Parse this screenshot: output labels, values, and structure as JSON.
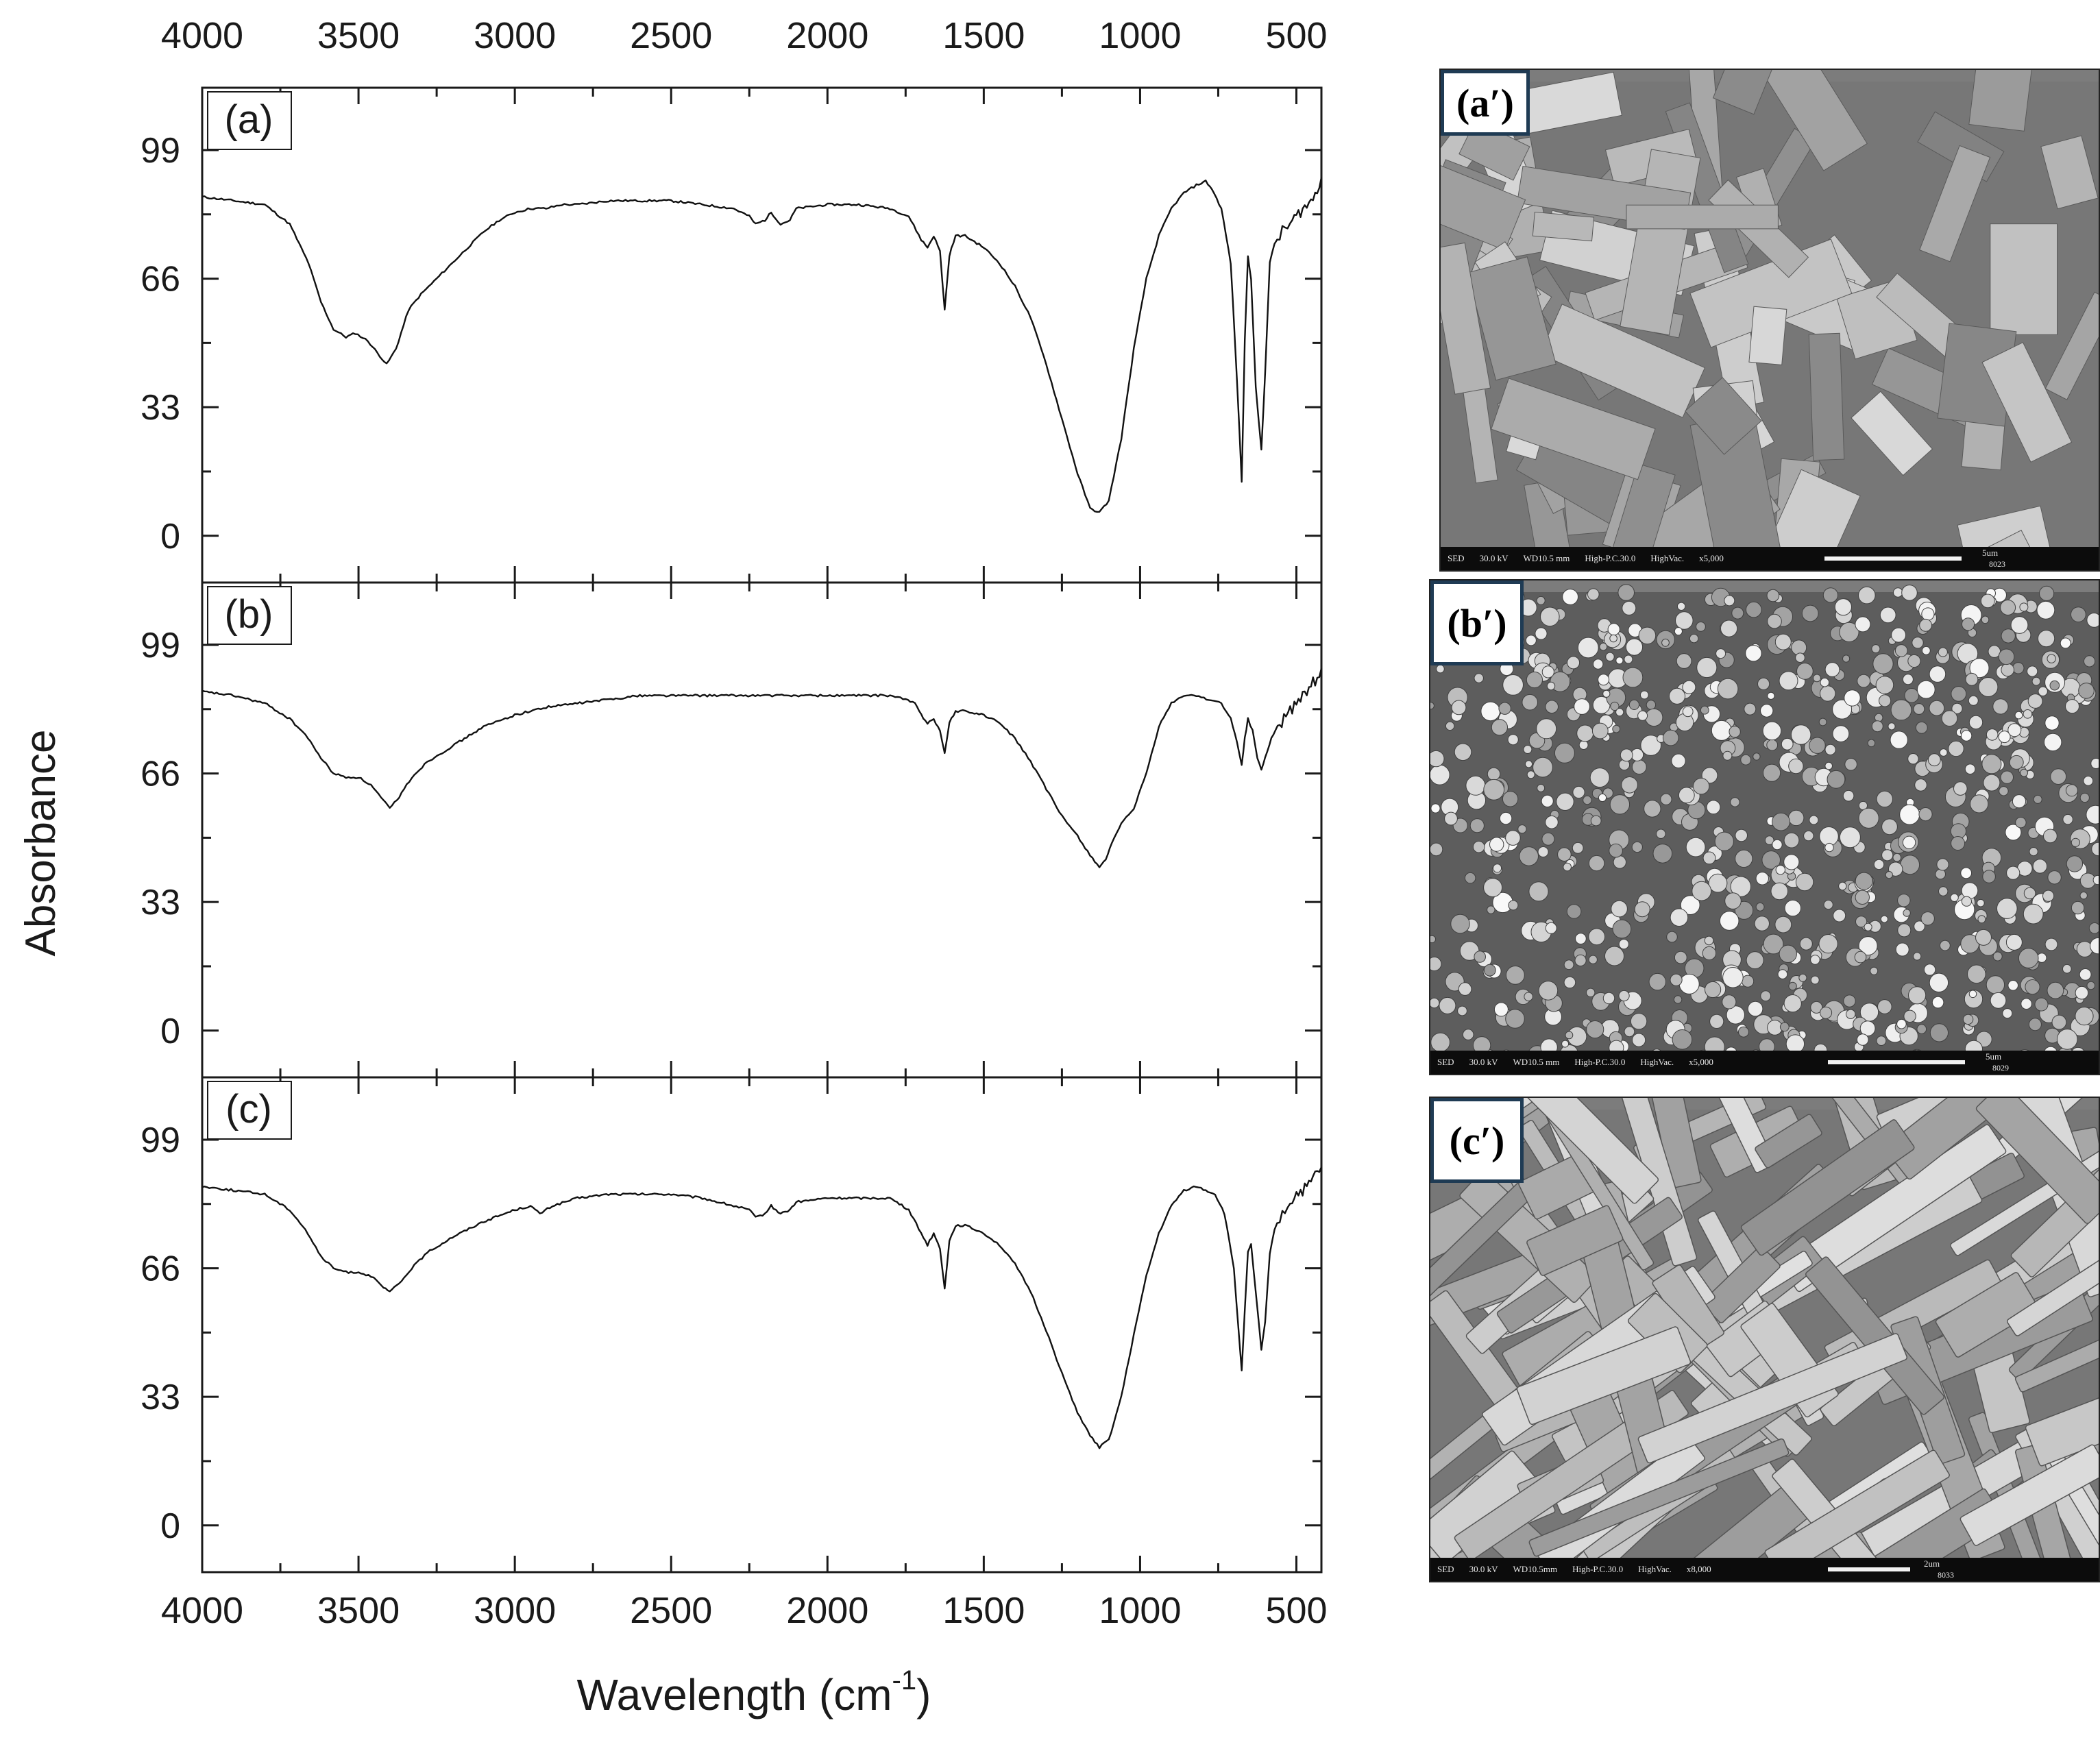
{
  "chart_data": {
    "type": "line",
    "xlabel": "Wavelength (cm",
    "xlabel_sup": "-1",
    "xlabel_close": ")",
    "ylabel": "Absorbance",
    "xlim": [
      4000,
      420
    ],
    "x_ticks": [
      4000,
      3500,
      3000,
      2500,
      2000,
      1500,
      1000,
      500
    ],
    "y_ticks": [
      0,
      33,
      66,
      99
    ],
    "ylim": [
      -12,
      115
    ],
    "grid": false,
    "panels": [
      {
        "label": "(a)",
        "points": [
          [
            4000,
            87
          ],
          [
            3900,
            86
          ],
          [
            3800,
            85
          ],
          [
            3720,
            80
          ],
          [
            3660,
            70
          ],
          [
            3620,
            60
          ],
          [
            3580,
            53
          ],
          [
            3540,
            51
          ],
          [
            3510,
            52
          ],
          [
            3470,
            50
          ],
          [
            3440,
            47
          ],
          [
            3410,
            44
          ],
          [
            3380,
            48
          ],
          [
            3340,
            58
          ],
          [
            3300,
            62
          ],
          [
            3250,
            66
          ],
          [
            3200,
            70
          ],
          [
            3150,
            74
          ],
          [
            3100,
            78
          ],
          [
            3050,
            81
          ],
          [
            3000,
            83
          ],
          [
            2950,
            84
          ],
          [
            2900,
            84
          ],
          [
            2850,
            85
          ],
          [
            2800,
            85
          ],
          [
            2700,
            86
          ],
          [
            2600,
            86
          ],
          [
            2500,
            86
          ],
          [
            2400,
            85
          ],
          [
            2300,
            84
          ],
          [
            2250,
            82
          ],
          [
            2230,
            80
          ],
          [
            2200,
            81
          ],
          [
            2180,
            83
          ],
          [
            2150,
            80
          ],
          [
            2120,
            81
          ],
          [
            2100,
            84
          ],
          [
            2000,
            85
          ],
          [
            1900,
            85
          ],
          [
            1800,
            84
          ],
          [
            1740,
            82
          ],
          [
            1700,
            76
          ],
          [
            1680,
            74
          ],
          [
            1660,
            77
          ],
          [
            1640,
            73
          ],
          [
            1625,
            58
          ],
          [
            1610,
            72
          ],
          [
            1590,
            77
          ],
          [
            1560,
            77
          ],
          [
            1500,
            74
          ],
          [
            1450,
            70
          ],
          [
            1400,
            64
          ],
          [
            1350,
            56
          ],
          [
            1300,
            44
          ],
          [
            1250,
            30
          ],
          [
            1200,
            16
          ],
          [
            1160,
            7
          ],
          [
            1130,
            6
          ],
          [
            1100,
            9
          ],
          [
            1060,
            25
          ],
          [
            1020,
            48
          ],
          [
            980,
            66
          ],
          [
            940,
            77
          ],
          [
            900,
            84
          ],
          [
            860,
            88
          ],
          [
            820,
            90
          ],
          [
            790,
            91
          ],
          [
            770,
            89
          ],
          [
            740,
            84
          ],
          [
            710,
            70
          ],
          [
            690,
            40
          ],
          [
            675,
            14
          ],
          [
            665,
            50
          ],
          [
            655,
            72
          ],
          [
            645,
            66
          ],
          [
            630,
            38
          ],
          [
            612,
            22
          ],
          [
            600,
            42
          ],
          [
            585,
            70
          ],
          [
            570,
            75
          ],
          [
            545,
            78
          ],
          [
            520,
            80
          ],
          [
            500,
            82
          ],
          [
            480,
            84
          ],
          [
            460,
            85
          ],
          [
            440,
            88
          ],
          [
            420,
            92
          ]
        ]
      },
      {
        "label": "(b)",
        "points": [
          [
            4000,
            87
          ],
          [
            3900,
            86
          ],
          [
            3800,
            84
          ],
          [
            3720,
            80
          ],
          [
            3670,
            76
          ],
          [
            3620,
            70
          ],
          [
            3580,
            66
          ],
          [
            3540,
            65
          ],
          [
            3500,
            65
          ],
          [
            3460,
            63
          ],
          [
            3420,
            59
          ],
          [
            3400,
            57
          ],
          [
            3370,
            60
          ],
          [
            3330,
            65
          ],
          [
            3280,
            69
          ],
          [
            3200,
            73
          ],
          [
            3100,
            78
          ],
          [
            3000,
            81
          ],
          [
            2950,
            82
          ],
          [
            2900,
            83
          ],
          [
            2800,
            84
          ],
          [
            2700,
            85
          ],
          [
            2600,
            86
          ],
          [
            2500,
            86
          ],
          [
            2400,
            86
          ],
          [
            2300,
            86
          ],
          [
            2200,
            86
          ],
          [
            2100,
            86
          ],
          [
            2000,
            86
          ],
          [
            1900,
            86
          ],
          [
            1800,
            86
          ],
          [
            1750,
            85
          ],
          [
            1720,
            84
          ],
          [
            1700,
            81
          ],
          [
            1680,
            79
          ],
          [
            1660,
            80
          ],
          [
            1640,
            77
          ],
          [
            1625,
            71
          ],
          [
            1610,
            79
          ],
          [
            1590,
            82
          ],
          [
            1560,
            82
          ],
          [
            1500,
            81
          ],
          [
            1450,
            79
          ],
          [
            1400,
            75
          ],
          [
            1350,
            69
          ],
          [
            1300,
            62
          ],
          [
            1250,
            55
          ],
          [
            1200,
            50
          ],
          [
            1160,
            45
          ],
          [
            1130,
            42
          ],
          [
            1110,
            44
          ],
          [
            1090,
            48
          ],
          [
            1060,
            53
          ],
          [
            1020,
            57
          ],
          [
            980,
            66
          ],
          [
            940,
            78
          ],
          [
            900,
            84
          ],
          [
            860,
            86
          ],
          [
            820,
            86
          ],
          [
            780,
            85
          ],
          [
            740,
            84
          ],
          [
            710,
            80
          ],
          [
            690,
            74
          ],
          [
            675,
            68
          ],
          [
            665,
            75
          ],
          [
            655,
            80
          ],
          [
            640,
            77
          ],
          [
            625,
            70
          ],
          [
            612,
            67
          ],
          [
            600,
            70
          ],
          [
            580,
            75
          ],
          [
            560,
            78
          ],
          [
            540,
            80
          ],
          [
            520,
            82
          ],
          [
            500,
            84
          ],
          [
            480,
            86
          ],
          [
            460,
            88
          ],
          [
            440,
            90
          ],
          [
            420,
            93
          ]
        ]
      },
      {
        "label": "(c)",
        "points": [
          [
            4000,
            87
          ],
          [
            3900,
            86
          ],
          [
            3800,
            85
          ],
          [
            3720,
            81
          ],
          [
            3670,
            76
          ],
          [
            3620,
            69
          ],
          [
            3580,
            66
          ],
          [
            3540,
            65
          ],
          [
            3500,
            65
          ],
          [
            3460,
            64
          ],
          [
            3420,
            61
          ],
          [
            3400,
            60
          ],
          [
            3370,
            62
          ],
          [
            3330,
            66
          ],
          [
            3280,
            70
          ],
          [
            3200,
            74
          ],
          [
            3100,
            78
          ],
          [
            3000,
            81
          ],
          [
            2950,
            82
          ],
          [
            2920,
            80
          ],
          [
            2880,
            82
          ],
          [
            2800,
            84
          ],
          [
            2700,
            85
          ],
          [
            2600,
            85
          ],
          [
            2500,
            85
          ],
          [
            2400,
            84
          ],
          [
            2300,
            82
          ],
          [
            2250,
            81
          ],
          [
            2230,
            79
          ],
          [
            2200,
            80
          ],
          [
            2180,
            82
          ],
          [
            2150,
            80
          ],
          [
            2120,
            81
          ],
          [
            2100,
            83
          ],
          [
            2000,
            84
          ],
          [
            1900,
            84
          ],
          [
            1800,
            84
          ],
          [
            1740,
            81
          ],
          [
            1700,
            75
          ],
          [
            1680,
            72
          ],
          [
            1660,
            75
          ],
          [
            1640,
            71
          ],
          [
            1625,
            61
          ],
          [
            1610,
            73
          ],
          [
            1590,
            77
          ],
          [
            1560,
            77
          ],
          [
            1500,
            75
          ],
          [
            1450,
            72
          ],
          [
            1400,
            67
          ],
          [
            1350,
            60
          ],
          [
            1300,
            50
          ],
          [
            1250,
            39
          ],
          [
            1200,
            29
          ],
          [
            1160,
            23
          ],
          [
            1130,
            20
          ],
          [
            1100,
            22
          ],
          [
            1060,
            33
          ],
          [
            1020,
            49
          ],
          [
            980,
            64
          ],
          [
            940,
            75
          ],
          [
            900,
            82
          ],
          [
            860,
            86
          ],
          [
            820,
            87
          ],
          [
            790,
            86
          ],
          [
            760,
            85
          ],
          [
            730,
            80
          ],
          [
            700,
            66
          ],
          [
            685,
            50
          ],
          [
            675,
            40
          ],
          [
            665,
            55
          ],
          [
            655,
            70
          ],
          [
            645,
            72
          ],
          [
            630,
            60
          ],
          [
            612,
            45
          ],
          [
            600,
            52
          ],
          [
            585,
            70
          ],
          [
            570,
            76
          ],
          [
            545,
            80
          ],
          [
            520,
            83
          ],
          [
            500,
            85
          ],
          [
            480,
            86
          ],
          [
            460,
            87
          ],
          [
            440,
            90
          ],
          [
            420,
            92
          ]
        ]
      }
    ]
  },
  "sem_images": [
    {
      "label": "(a′)",
      "bar_fields": [
        "SED",
        "30.0 kV",
        "WD10.5 mm",
        "High-P.C.30.0",
        "HighVac.",
        "x5,000"
      ],
      "scale_text": "5um",
      "code": "8023"
    },
    {
      "label": "(b′)",
      "bar_fields": [
        "SED",
        "30.0 kV",
        "WD10.5 mm",
        "High-P.C.30.0",
        "HighVac.",
        "x5,000"
      ],
      "scale_text": "5um",
      "code": "8029"
    },
    {
      "label": "(c′)",
      "bar_fields": [
        "SED",
        "30.0 kV",
        "WD10.5mm",
        "High-P.C.30.0",
        "HighVac.",
        "x8,000"
      ],
      "scale_text": "2um",
      "code": "8033"
    }
  ]
}
